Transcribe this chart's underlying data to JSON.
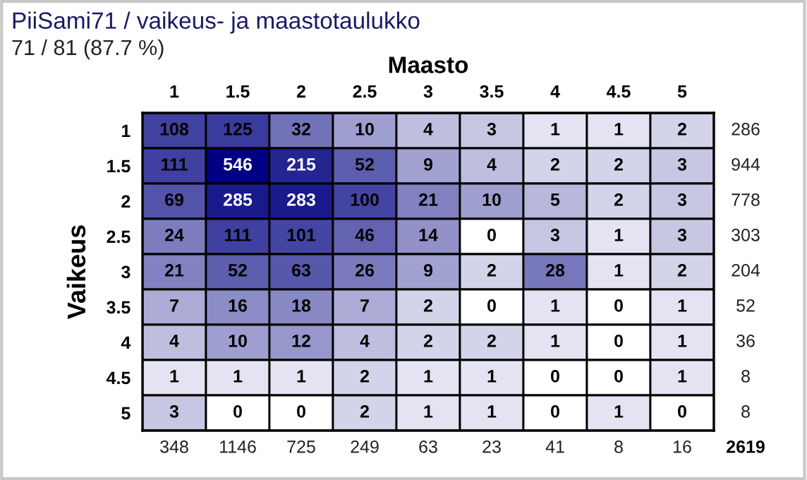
{
  "chart_data": {
    "type": "heatmap",
    "title": "PiiSami71 / vaikeus- ja maastotaulukko",
    "subtitle": "71 / 81 (87.7 %)",
    "xlabel": "Maasto",
    "ylabel": "Vaikeus",
    "categories": [
      "1",
      "1.5",
      "2",
      "2.5",
      "3",
      "3.5",
      "4",
      "4.5",
      "5"
    ],
    "y_categories": [
      "1",
      "1.5",
      "2",
      "2.5",
      "3",
      "3.5",
      "4",
      "4.5",
      "5"
    ],
    "y2_categories": [
      "286",
      "944",
      "778",
      "303",
      "204",
      "52",
      "36",
      "8",
      "8"
    ],
    "totals": [
      "348",
      "1146",
      "725",
      "249",
      "63",
      "23",
      "41",
      "8",
      "16"
    ],
    "annotations": [
      "2619"
    ],
    "color": "#000080",
    "data_labels": true,
    "cells": [
      [
        108,
        125,
        32,
        10,
        4,
        3,
        1,
        1,
        2
      ],
      [
        111,
        546,
        215,
        52,
        9,
        4,
        2,
        2,
        3
      ],
      [
        69,
        285,
        283,
        100,
        21,
        10,
        5,
        2,
        3
      ],
      [
        24,
        111,
        101,
        46,
        14,
        0,
        3,
        1,
        3
      ],
      [
        21,
        52,
        63,
        26,
        9,
        2,
        28,
        1,
        2
      ],
      [
        7,
        16,
        18,
        7,
        2,
        0,
        1,
        0,
        1
      ],
      [
        4,
        10,
        12,
        4,
        2,
        2,
        1,
        0,
        1
      ],
      [
        1,
        1,
        1,
        2,
        1,
        1,
        0,
        0,
        1
      ],
      [
        3,
        0,
        0,
        2,
        1,
        1,
        0,
        1,
        0
      ]
    ]
  }
}
